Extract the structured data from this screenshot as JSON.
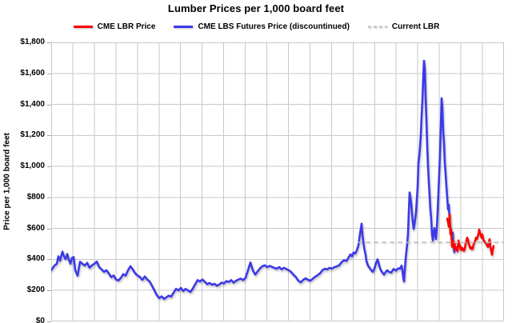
{
  "chart": {
    "title": "Lumber Prices per 1,000 board feet",
    "legend": [
      {
        "label": "CME LBR Price",
        "color": "#ff0000",
        "style": "solid"
      },
      {
        "label": "CME LBS Futures Price (discountinued)",
        "color": "#3c39ea",
        "style": "solid"
      },
      {
        "label": "Current LBR",
        "color": "#bfbfbf",
        "style": "dashed"
      }
    ],
    "y_axis": {
      "title": "Price per 1,000 board feet",
      "ticks": [
        {
          "value": 1800,
          "label": "$1,800"
        },
        {
          "value": 1600,
          "label": "$1,600"
        },
        {
          "value": 1400,
          "label": "$1,400"
        },
        {
          "value": 1200,
          "label": "$1,200"
        },
        {
          "value": 1000,
          "label": "$1,000"
        },
        {
          "value": 800,
          "label": "$800"
        },
        {
          "value": 600,
          "label": "$600"
        },
        {
          "value": 400,
          "label": "$400"
        },
        {
          "value": 200,
          "label": "$200"
        },
        {
          "value": 0,
          "label": "$0"
        }
      ]
    },
    "x_axis": {
      "note": "date labels cropped out of visible screenshot",
      "gridline_intervals": 21
    }
  },
  "chart_data": {
    "type": "line",
    "title": "Lumber Prices per 1,000 board feet",
    "xlabel": "",
    "ylabel": "Price per 1,000 board feet",
    "ylim": [
      0,
      1800
    ],
    "grid": true,
    "legend_position": "top",
    "x_unit": "plot position 0-566 (time axis, labels not visible)",
    "series": [
      {
        "name": "CME LBS Futures Price (discountinued)",
        "color": "#3c39ea",
        "style": "solid",
        "points": [
          [
            0,
            330
          ],
          [
            4,
            360
          ],
          [
            7,
            372
          ],
          [
            9,
            420
          ],
          [
            11,
            392
          ],
          [
            14,
            450
          ],
          [
            16,
            420
          ],
          [
            18,
            402
          ],
          [
            20,
            435
          ],
          [
            22,
            400
          ],
          [
            24,
            372
          ],
          [
            26,
            410
          ],
          [
            28,
            415
          ],
          [
            30,
            330
          ],
          [
            33,
            295
          ],
          [
            36,
            385
          ],
          [
            39,
            372
          ],
          [
            42,
            360
          ],
          [
            45,
            378
          ],
          [
            48,
            346
          ],
          [
            51,
            362
          ],
          [
            54,
            372
          ],
          [
            57,
            386
          ],
          [
            60,
            350
          ],
          [
            63,
            336
          ],
          [
            66,
            320
          ],
          [
            69,
            330
          ],
          [
            72,
            310
          ],
          [
            75,
            286
          ],
          [
            78,
            296
          ],
          [
            81,
            270
          ],
          [
            84,
            264
          ],
          [
            87,
            280
          ],
          [
            90,
            305
          ],
          [
            93,
            295
          ],
          [
            96,
            330
          ],
          [
            99,
            356
          ],
          [
            102,
            336
          ],
          [
            105,
            310
          ],
          [
            108,
            296
          ],
          [
            111,
            286
          ],
          [
            114,
            268
          ],
          [
            117,
            290
          ],
          [
            120,
            270
          ],
          [
            123,
            258
          ],
          [
            126,
            230
          ],
          [
            129,
            200
          ],
          [
            132,
            170
          ],
          [
            135,
            150
          ],
          [
            138,
            162
          ],
          [
            141,
            145
          ],
          [
            144,
            156
          ],
          [
            147,
            166
          ],
          [
            150,
            160
          ],
          [
            153,
            186
          ],
          [
            156,
            210
          ],
          [
            159,
            200
          ],
          [
            162,
            216
          ],
          [
            165,
            196
          ],
          [
            168,
            210
          ],
          [
            171,
            200
          ],
          [
            174,
            190
          ],
          [
            177,
            212
          ],
          [
            180,
            240
          ],
          [
            183,
            266
          ],
          [
            186,
            258
          ],
          [
            189,
            270
          ],
          [
            192,
            256
          ],
          [
            195,
            240
          ],
          [
            198,
            248
          ],
          [
            201,
            236
          ],
          [
            204,
            243
          ],
          [
            207,
            230
          ],
          [
            210,
            238
          ],
          [
            213,
            250
          ],
          [
            216,
            245
          ],
          [
            219,
            260
          ],
          [
            222,
            255
          ],
          [
            225,
            266
          ],
          [
            228,
            250
          ],
          [
            231,
            262
          ],
          [
            234,
            270
          ],
          [
            237,
            276
          ],
          [
            240,
            266
          ],
          [
            243,
            282
          ],
          [
            246,
            330
          ],
          [
            249,
            380
          ],
          [
            252,
            330
          ],
          [
            255,
            302
          ],
          [
            258,
            322
          ],
          [
            261,
            342
          ],
          [
            264,
            356
          ],
          [
            267,
            362
          ],
          [
            270,
            350
          ],
          [
            273,
            358
          ],
          [
            276,
            352
          ],
          [
            279,
            345
          ],
          [
            282,
            340
          ],
          [
            285,
            350
          ],
          [
            288,
            336
          ],
          [
            291,
            346
          ],
          [
            294,
            338
          ],
          [
            297,
            330
          ],
          [
            300,
            318
          ],
          [
            303,
            300
          ],
          [
            306,
            285
          ],
          [
            309,
            262
          ],
          [
            312,
            252
          ],
          [
            315,
            268
          ],
          [
            318,
            278
          ],
          [
            321,
            268
          ],
          [
            324,
            262
          ],
          [
            327,
            276
          ],
          [
            330,
            288
          ],
          [
            333,
            298
          ],
          [
            336,
            310
          ],
          [
            339,
            330
          ],
          [
            342,
            340
          ],
          [
            345,
            335
          ],
          [
            348,
            346
          ],
          [
            351,
            340
          ],
          [
            354,
            350
          ],
          [
            357,
            355
          ],
          [
            360,
            362
          ],
          [
            363,
            382
          ],
          [
            366,
            395
          ],
          [
            369,
            390
          ],
          [
            372,
            415
          ],
          [
            374,
            432
          ],
          [
            376,
            420
          ],
          [
            378,
            445
          ],
          [
            380,
            438
          ],
          [
            382,
            458
          ],
          [
            384,
            490
          ],
          [
            386,
            565
          ],
          [
            388,
            630
          ],
          [
            389,
            560
          ],
          [
            391,
            480
          ],
          [
            393,
            430
          ],
          [
            394,
            390
          ],
          [
            396,
            360
          ],
          [
            398,
            345
          ],
          [
            400,
            330
          ],
          [
            402,
            320
          ],
          [
            404,
            340
          ],
          [
            406,
            375
          ],
          [
            408,
            400
          ],
          [
            410,
            360
          ],
          [
            412,
            330
          ],
          [
            414,
            315
          ],
          [
            416,
            302
          ],
          [
            418,
            318
          ],
          [
            420,
            330
          ],
          [
            422,
            320
          ],
          [
            425,
            315
          ],
          [
            428,
            338
          ],
          [
            431,
            328
          ],
          [
            434,
            343
          ],
          [
            436,
            340
          ],
          [
            438,
            360
          ],
          [
            439,
            330
          ],
          [
            440,
            282
          ],
          [
            441,
            258
          ],
          [
            442,
            330
          ],
          [
            443,
            402
          ],
          [
            444,
            452
          ],
          [
            445,
            502
          ],
          [
            446,
            562
          ],
          [
            447,
            702
          ],
          [
            448,
            832
          ],
          [
            449,
            800
          ],
          [
            450,
            760
          ],
          [
            451,
            700
          ],
          [
            452,
            642
          ],
          [
            453,
            596
          ],
          [
            454,
            622
          ],
          [
            455,
            662
          ],
          [
            456,
            702
          ],
          [
            457,
            782
          ],
          [
            458,
            862
          ],
          [
            459,
            1020
          ],
          [
            460,
            1062
          ],
          [
            461,
            1122
          ],
          [
            462,
            1202
          ],
          [
            463,
            1322
          ],
          [
            464,
            1422
          ],
          [
            465,
            1562
          ],
          [
            466,
            1682
          ],
          [
            467,
            1630
          ],
          [
            468,
            1452
          ],
          [
            469,
            1302
          ],
          [
            470,
            1132
          ],
          [
            471,
            1002
          ],
          [
            472,
            902
          ],
          [
            473,
            812
          ],
          [
            474,
            722
          ],
          [
            475,
            662
          ],
          [
            476,
            562
          ],
          [
            477,
            522
          ],
          [
            478,
            562
          ],
          [
            479,
            602
          ],
          [
            480,
            562
          ],
          [
            481,
            532
          ],
          [
            482,
            602
          ],
          [
            483,
            702
          ],
          [
            484,
            822
          ],
          [
            485,
            952
          ],
          [
            486,
            1082
          ],
          [
            487,
            1252
          ],
          [
            488,
            1440
          ],
          [
            489,
            1372
          ],
          [
            490,
            1222
          ],
          [
            491,
            1152
          ],
          [
            492,
            1022
          ],
          [
            493,
            952
          ],
          [
            494,
            872
          ],
          [
            495,
            802
          ],
          [
            496,
            722
          ],
          [
            497,
            752
          ],
          [
            498,
            652
          ],
          [
            499,
            602
          ],
          [
            500,
            562
          ],
          [
            501,
            532
          ],
          [
            502,
            572
          ],
          [
            503,
            472
          ],
          [
            504,
            446
          ]
        ]
      },
      {
        "name": "CME LBR Price",
        "color": "#ff0000",
        "style": "solid",
        "points": [
          [
            495,
            662
          ],
          [
            496,
            642
          ],
          [
            497,
            612
          ],
          [
            498,
            690
          ],
          [
            499,
            562
          ],
          [
            500,
            592
          ],
          [
            501,
            482
          ],
          [
            502,
            522
          ],
          [
            503,
            476
          ],
          [
            504,
            512
          ],
          [
            505,
            466
          ],
          [
            506,
            460
          ],
          [
            507,
            478
          ],
          [
            508,
            452
          ],
          [
            509,
            522
          ],
          [
            510,
            500
          ],
          [
            511,
            482
          ],
          [
            512,
            462
          ],
          [
            513,
            478
          ],
          [
            514,
            460
          ],
          [
            515,
            470
          ],
          [
            516,
            456
          ],
          [
            517,
            470
          ],
          [
            518,
            500
          ],
          [
            519,
            522
          ],
          [
            520,
            540
          ],
          [
            521,
            526
          ],
          [
            522,
            500
          ],
          [
            523,
            486
          ],
          [
            524,
            470
          ],
          [
            525,
            478
          ],
          [
            526,
            466
          ],
          [
            527,
            470
          ],
          [
            528,
            496
          ],
          [
            529,
            510
          ],
          [
            530,
            522
          ],
          [
            531,
            540
          ],
          [
            532,
            530
          ],
          [
            533,
            546
          ],
          [
            534,
            562
          ],
          [
            535,
            592
          ],
          [
            536,
            572
          ],
          [
            537,
            556
          ],
          [
            538,
            540
          ],
          [
            539,
            560
          ],
          [
            540,
            530
          ],
          [
            541,
            520
          ],
          [
            542,
            512
          ],
          [
            543,
            508
          ],
          [
            544,
            498
          ],
          [
            545,
            490
          ],
          [
            546,
            480
          ],
          [
            547,
            506
          ],
          [
            548,
            530
          ],
          [
            549,
            480
          ],
          [
            550,
            455
          ],
          [
            551,
            430
          ],
          [
            552,
            466
          ],
          [
            553,
            486
          ]
        ]
      },
      {
        "name": "Current LBR",
        "color": "#bfbfbf",
        "style": "dashed",
        "value": 510,
        "x_range": [
          383,
          566
        ]
      }
    ]
  }
}
